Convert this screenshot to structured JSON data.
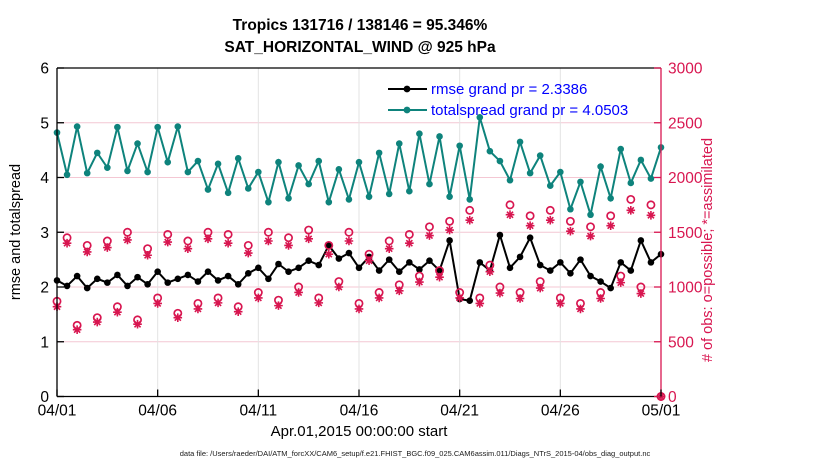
{
  "title": {
    "line1": "Tropics 131716 / 138146 = 95.346%",
    "line2": "SAT_HORIZONTAL_WIND @ 925 hPa"
  },
  "legend": {
    "position": "top-right-inside",
    "items": [
      {
        "label": "rmse grand pr = 2.3386",
        "series": "rmse",
        "color": "#000000"
      },
      {
        "label": "totalspread grand pr = 4.0503",
        "series": "totalspread",
        "color": "#0e837c"
      }
    ],
    "text_color": "#0000ff"
  },
  "axes": {
    "left": {
      "label": "rmse and totalspread",
      "ticks": [
        0,
        1,
        2,
        3,
        4,
        5,
        6
      ],
      "range": [
        0,
        6
      ],
      "color": "#000000"
    },
    "right": {
      "label": "# of obs: o=possible; *=assimilated",
      "ticks": [
        0,
        500,
        1000,
        1500,
        2000,
        2500,
        3000
      ],
      "range": [
        0,
        3000
      ],
      "color": "#d81650"
    },
    "x": {
      "label": "Apr.01,2015 00:00:00 start",
      "tick_labels": [
        "04/01",
        "04/06",
        "04/11",
        "04/16",
        "04/21",
        "04/26",
        "05/01"
      ],
      "tick_days": [
        0,
        5,
        10,
        15,
        20,
        25,
        30
      ],
      "range_days": [
        0,
        30
      ]
    }
  },
  "footer": "data file: /Users/raeder/DAI/ATM_forcXX/CAM6_setup/f.e21.FHIST_BGC.f09_025.CAM6assim.011/Diags_NTrS_2015-04/obs_diag_output.nc",
  "colors": {
    "rmse": "#000000",
    "totalspread": "#0e837c",
    "obs": "#d81650",
    "legend_text": "#0000ff",
    "grid_h": "#f4c7d3",
    "grid_v": "#e3e3e3",
    "frame": "#000000"
  },
  "chart_data": {
    "type": "line",
    "title": "Tropics 131716 / 138146 = 95.346% | SAT_HORIZONTAL_WIND @ 925 hPa",
    "xlabel": "Apr.01,2015 00:00:00 start",
    "ylabel_left": "rmse and totalspread",
    "ylabel_right": "# of obs: o=possible; *=assimilated",
    "ylim_left": [
      0,
      6
    ],
    "ylim_right": [
      0,
      3000
    ],
    "grid": true,
    "x": {
      "start": 0,
      "step": 0.5,
      "count": 61,
      "unit": "days since 2015-04-01 00:00"
    },
    "series": [
      {
        "name": "rmse",
        "axis": "left",
        "style": "line-dot",
        "color": "#000000",
        "grand_mean": 2.3386,
        "values": [
          2.12,
          2.02,
          2.2,
          1.98,
          2.15,
          2.08,
          2.22,
          2.02,
          2.18,
          2.05,
          2.28,
          2.08,
          2.15,
          2.22,
          2.1,
          2.28,
          2.12,
          2.2,
          2.05,
          2.25,
          2.35,
          2.15,
          2.42,
          2.28,
          2.35,
          2.48,
          2.4,
          2.76,
          2.52,
          2.62,
          2.35,
          2.55,
          2.3,
          2.5,
          2.28,
          2.45,
          2.32,
          2.48,
          2.3,
          2.85,
          1.78,
          1.75,
          2.45,
          2.3,
          2.95,
          2.35,
          2.55,
          2.9,
          2.4,
          2.3,
          2.45,
          2.25,
          2.5,
          2.2,
          2.1,
          1.98,
          2.45,
          2.3,
          2.85,
          2.45,
          2.6
        ]
      },
      {
        "name": "totalspread",
        "axis": "left",
        "style": "line-dot",
        "color": "#0e837c",
        "grand_mean": 4.0503,
        "values": [
          4.82,
          4.05,
          4.93,
          4.08,
          4.45,
          4.18,
          4.92,
          4.12,
          4.62,
          4.1,
          4.92,
          4.28,
          4.93,
          4.1,
          4.3,
          3.78,
          4.25,
          3.72,
          4.35,
          3.8,
          4.1,
          3.55,
          4.28,
          3.62,
          4.22,
          3.88,
          4.3,
          3.55,
          4.15,
          3.6,
          4.28,
          3.65,
          4.45,
          3.7,
          4.62,
          3.75,
          4.8,
          3.88,
          4.75,
          3.65,
          4.58,
          3.6,
          5.1,
          4.48,
          4.3,
          3.95,
          4.65,
          4.08,
          4.4,
          3.85,
          4.1,
          3.42,
          3.92,
          3.32,
          4.2,
          3.62,
          4.52,
          3.9,
          4.32,
          3.98,
          4.55
        ]
      },
      {
        "name": "possible_obs",
        "axis": "right",
        "style": "open-circle",
        "color": "#d81650",
        "values": [
          870,
          1450,
          650,
          1380,
          720,
          1420,
          820,
          1500,
          700,
          1350,
          900,
          1480,
          760,
          1420,
          850,
          1500,
          900,
          1480,
          820,
          1380,
          950,
          1500,
          880,
          1450,
          1000,
          1520,
          900,
          1380,
          1050,
          1500,
          850,
          1300,
          950,
          1420,
          1020,
          1480,
          1100,
          1550,
          1150,
          1600,
          950,
          1700,
          900,
          1200,
          1000,
          1750,
          950,
          1650,
          1050,
          1700,
          900,
          1600,
          850,
          1550,
          950,
          1650,
          1100,
          1800,
          1000,
          1750,
          0
        ]
      },
      {
        "name": "assimilated_obs",
        "axis": "right",
        "style": "asterisk",
        "color": "#d81650",
        "values": [
          820,
          1400,
          610,
          1320,
          680,
          1360,
          770,
          1430,
          660,
          1290,
          850,
          1410,
          720,
          1350,
          800,
          1440,
          855,
          1400,
          775,
          1310,
          900,
          1420,
          830,
          1380,
          950,
          1440,
          855,
          1300,
          1000,
          1420,
          800,
          1240,
          900,
          1350,
          965,
          1400,
          1045,
          1470,
          1090,
          1520,
          900,
          1610,
          850,
          1140,
          945,
          1660,
          895,
          1560,
          990,
          1610,
          850,
          1510,
          800,
          1465,
          895,
          1560,
          1040,
          1700,
          940,
          1655,
          0
        ]
      }
    ]
  }
}
